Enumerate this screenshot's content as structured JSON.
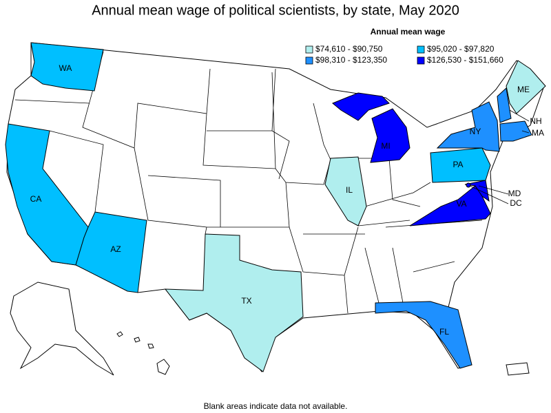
{
  "title": "Annual mean wage of political scientists, by state, May 2020",
  "legend": {
    "title": "Annual mean wage",
    "items": [
      {
        "label": "$74,610 - $90,750",
        "color": "#b0eeee"
      },
      {
        "label": "$95,020 - $97,820",
        "color": "#00bfff"
      },
      {
        "label": "$98,310 - $123,350",
        "color": "#1e90ff"
      },
      {
        "label": "$126,530 - $151,660",
        "color": "#0000ff"
      }
    ]
  },
  "states": [
    {
      "label": "WA",
      "color": "#00bfff"
    },
    {
      "label": "CA",
      "color": "#00bfff"
    },
    {
      "label": "AZ",
      "color": "#00bfff"
    },
    {
      "label": "TX",
      "color": "#b0eeee"
    },
    {
      "label": "IL",
      "color": "#b0eeee"
    },
    {
      "label": "MI",
      "color": "#0000ff"
    },
    {
      "label": "PA",
      "color": "#00bfff"
    },
    {
      "label": "NY",
      "color": "#1e90ff"
    },
    {
      "label": "ME",
      "color": "#b0eeee"
    },
    {
      "label": "NH",
      "color": "#1e90ff"
    },
    {
      "label": "MA",
      "color": "#1e90ff"
    },
    {
      "label": "VA",
      "color": "#0000ff"
    },
    {
      "label": "MD",
      "color": "#0000ff"
    },
    {
      "label": "DC",
      "color": "#0000ff"
    },
    {
      "label": "FL",
      "color": "#1e90ff"
    }
  ],
  "footnote": "Blank areas indicate data not available."
}
